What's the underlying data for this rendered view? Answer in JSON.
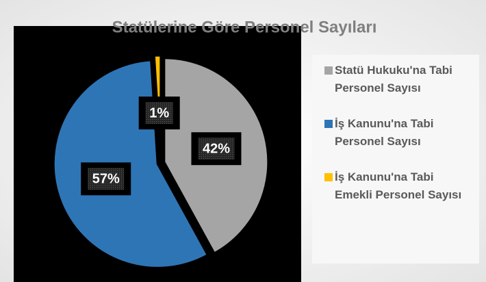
{
  "chart_data": {
    "type": "pie",
    "title": "Statülerine Göre Personel Sayıları",
    "categories": [
      "Statü Hukuku'na Tabi Personel Sayısı",
      "İş Kanunu'na Tabi Personel Sayısı",
      "İş Kanunu'na Tabi Emekli Personel Sayısı"
    ],
    "values": [
      42,
      57,
      1
    ],
    "value_labels": [
      "42%",
      "57%",
      "1%"
    ],
    "colors": [
      "#a5a5a5",
      "#2e75b6",
      "#ffc000"
    ],
    "legend": "right"
  }
}
